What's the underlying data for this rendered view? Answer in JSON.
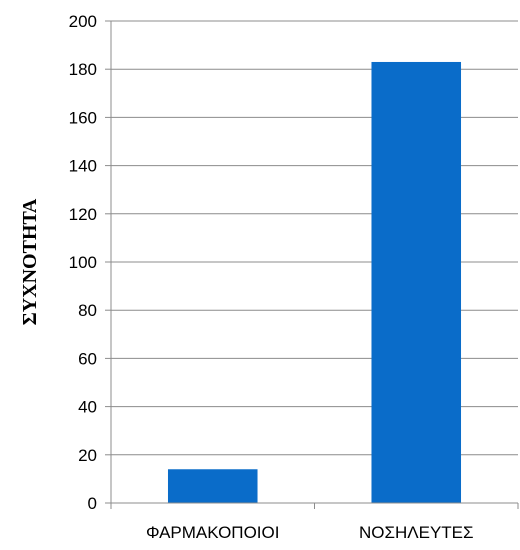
{
  "chart_data": {
    "type": "bar",
    "categories": [
      "ΦΑΡΜΑΚΟΠΟΙΟΙ",
      "ΝΟΣΗΛΕΥΤΕΣ"
    ],
    "values": [
      14,
      183
    ],
    "title": "",
    "xlabel": "",
    "ylabel": "ΣΥΧΝΟΤΗΤΑ",
    "ylim": [
      0,
      200
    ],
    "yticks": [
      0,
      20,
      40,
      60,
      80,
      100,
      120,
      140,
      160,
      180,
      200
    ],
    "grid": true,
    "legend": "none",
    "bar_color": "#0a6cc9",
    "grid_color": "#8c8c8c"
  }
}
